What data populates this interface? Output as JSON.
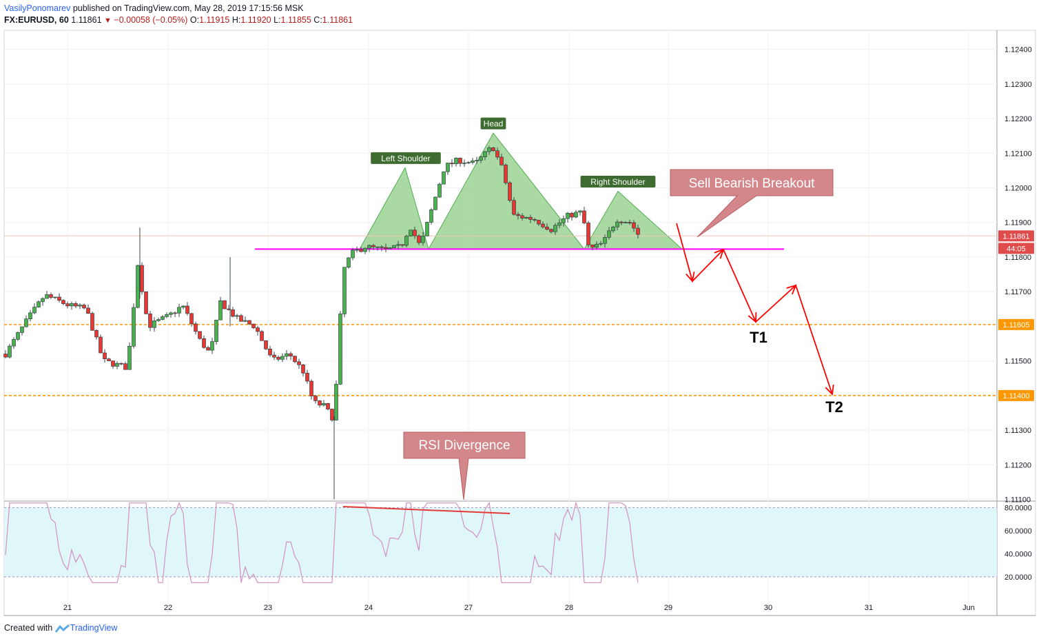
{
  "header": {
    "author": "VasilyPonomarev",
    "published": "published on TradingView.com, May 28, 2019 17:15:56 MSK",
    "symbol": "FX:EURUSD, 60",
    "last": "1.11861",
    "change": "−0.00058 (−0.05%)",
    "o_label": "O:",
    "o": "1.11915",
    "h_label": "H:",
    "h": "1.11920",
    "l_label": "L:",
    "l": "1.11855",
    "c_label": "C:",
    "c": "1.11861"
  },
  "footer": {
    "created_with": "Created with",
    "brand": "TradingView"
  },
  "colors": {
    "up": "#4caf50",
    "down": "#e53935",
    "pattern_fill": "#8fcc84",
    "neckline": "#ff00ff",
    "target_line": "#ff9800",
    "arrow": "#ff0000",
    "rsi_line": "#d48fc0",
    "rsi_band": "#e0f7fa",
    "callout": "#d4878b"
  },
  "chart_data": [
    {
      "type": "candlestick",
      "symbol": "FX:EURUSD",
      "timeframe": "60",
      "x_ticks": [
        "21",
        "22",
        "23",
        "24",
        "27",
        "28",
        "29",
        "30",
        "31",
        "Jun"
      ],
      "y_ticks": [
        "1.12400",
        "1.12300",
        "1.12200",
        "1.12100",
        "1.12000",
        "1.11900",
        "1.11800",
        "1.11700",
        "1.11500",
        "1.11300",
        "1.11200",
        "1.11100"
      ],
      "y_range": [
        1.11095,
        1.12455
      ],
      "price_markers": [
        {
          "label": "1.11861",
          "value": 1.11861,
          "color": "#e04c4c"
        },
        {
          "label": "44:05",
          "value": 1.11825,
          "color": "#e04c4c"
        },
        {
          "label": "1.11605",
          "value": 1.11605,
          "color": "#ff9800"
        },
        {
          "label": "1.11400",
          "value": 1.114,
          "color": "#ff9800"
        }
      ],
      "neckline": 1.11823,
      "targets": [
        {
          "label": "T1",
          "value": 1.11605
        },
        {
          "label": "T2",
          "value": 1.114
        }
      ],
      "pattern_labels": [
        "Left Shoulder",
        "Head",
        "Right Shoulder"
      ],
      "callouts": [
        "Sell Bearish Breakout",
        "RSI Divergence"
      ]
    },
    {
      "type": "line",
      "name_shown": false,
      "y_ticks": [
        "80.0000",
        "60.0000",
        "40.0000",
        "20.0000"
      ],
      "y_range": [
        5,
        85
      ],
      "band": [
        20,
        80
      ]
    }
  ]
}
